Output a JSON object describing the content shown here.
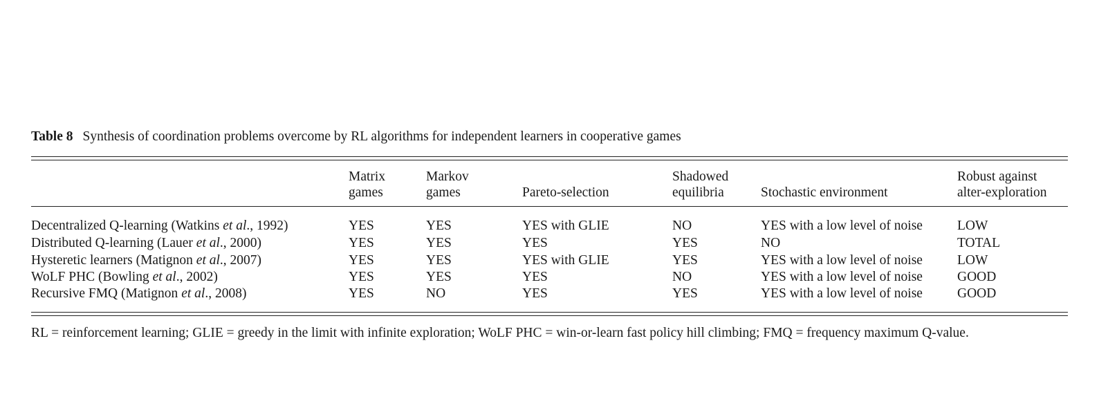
{
  "caption": {
    "label": "Table 8",
    "text": "Synthesis of coordination problems overcome by RL algorithms for independent learners in cooperative games"
  },
  "columns": [
    {
      "line1": "",
      "line2": ""
    },
    {
      "line1": "Matrix",
      "line2": "games"
    },
    {
      "line1": "Markov",
      "line2": "games"
    },
    {
      "line1": "",
      "line2": "Pareto-selection"
    },
    {
      "line1": "Shadowed",
      "line2": "equilibria"
    },
    {
      "line1": "",
      "line2": "Stochastic environment"
    },
    {
      "line1": "Robust against",
      "line2": "alter-exploration"
    }
  ],
  "rows": [
    {
      "algo_name": "Decentralized Q-learning (Watkins ",
      "algo_etal": "et al",
      "algo_year": "., 1992)",
      "cells": [
        "YES",
        "YES",
        "YES with GLIE",
        "NO",
        "YES with a low level of noise",
        "LOW"
      ]
    },
    {
      "algo_name": "Distributed Q-learning (Lauer ",
      "algo_etal": "et al",
      "algo_year": "., 2000)",
      "cells": [
        "YES",
        "YES",
        "YES",
        "YES",
        "NO",
        "TOTAL"
      ]
    },
    {
      "algo_name": "Hysteretic learners (Matignon ",
      "algo_etal": "et al",
      "algo_year": "., 2007)",
      "cells": [
        "YES",
        "YES",
        "YES with GLIE",
        "YES",
        "YES with a low level of noise",
        "LOW"
      ]
    },
    {
      "algo_name": "WoLF PHC (Bowling ",
      "algo_etal": "et al",
      "algo_year": "., 2002)",
      "cells": [
        "YES",
        "YES",
        "YES",
        "NO",
        "YES with a low level of noise",
        "GOOD"
      ]
    },
    {
      "algo_name": "Recursive FMQ (Matignon ",
      "algo_etal": "et al",
      "algo_year": "., 2008)",
      "cells": [
        "YES",
        "NO",
        "YES",
        "YES",
        "YES with a low level of noise",
        "GOOD"
      ]
    }
  ],
  "footnote": "RL = reinforcement learning; GLIE = greedy in the limit with infinite exploration; WoLF PHC = win-or-learn fast policy hill climbing; FMQ = frequency maximum Q-value."
}
